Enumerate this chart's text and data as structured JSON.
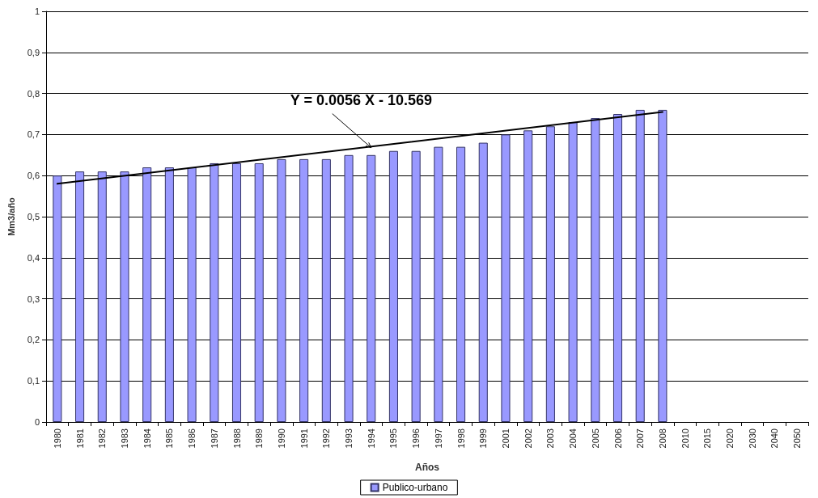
{
  "chart_data": {
    "type": "bar",
    "xlabel": "Años",
    "ylabel": "Mm3/año",
    "categories": [
      "1980",
      "1981",
      "1982",
      "1983",
      "1984",
      "1985",
      "1986",
      "1987",
      "1988",
      "1989",
      "1990",
      "1991",
      "1992",
      "1993",
      "1994",
      "1995",
      "1996",
      "1997",
      "1998",
      "1999",
      "2001",
      "2002",
      "2003",
      "2004",
      "2005",
      "2006",
      "2007",
      "2008",
      "2010",
      "2015",
      "2020",
      "2030",
      "2040",
      "2050"
    ],
    "series": [
      {
        "name": "Publico-urbano",
        "color": "#9999ff",
        "values": [
          0.6,
          0.61,
          0.61,
          0.61,
          0.62,
          0.62,
          0.62,
          0.63,
          0.63,
          0.63,
          0.64,
          0.64,
          0.64,
          0.65,
          0.65,
          0.66,
          0.66,
          0.67,
          0.67,
          0.68,
          0.7,
          0.71,
          0.72,
          0.73,
          0.74,
          0.75,
          0.76,
          0.76,
          null,
          null,
          null,
          null,
          null,
          null
        ]
      },
      {
        "type": "line",
        "color": "#000000",
        "values": [
          0.58,
          null,
          null,
          null,
          null,
          null,
          null,
          null,
          null,
          null,
          null,
          null,
          null,
          null,
          null,
          null,
          null,
          null,
          null,
          null,
          null,
          null,
          null,
          null,
          null,
          null,
          null,
          0.755,
          null,
          null,
          null,
          null,
          null,
          null
        ]
      }
    ],
    "ylim": [
      0,
      1
    ],
    "yticks": [
      0,
      {
        "value": 0.1,
        "label": "0,1"
      },
      {
        "value": 0.2,
        "label": "0,2"
      },
      {
        "value": 0.3,
        "label": "0,3"
      },
      {
        "value": 0.4,
        "label": "0,4"
      },
      {
        "value": 0.5,
        "label": "0,5"
      },
      {
        "value": 0.6,
        "label": "0,6"
      },
      {
        "value": 0.7,
        "label": "0,7"
      },
      {
        "value": 0.8,
        "label": "0,8"
      },
      {
        "value": 0.9,
        "label": "0,9"
      },
      1
    ],
    "grid": "y",
    "legend": "bottom",
    "marker": "none",
    "line_style": "solid",
    "annotations": [
      {
        "text": "Y = 0.0056 X - 10.569",
        "x": "1994",
        "y": 0.668
      }
    ]
  }
}
